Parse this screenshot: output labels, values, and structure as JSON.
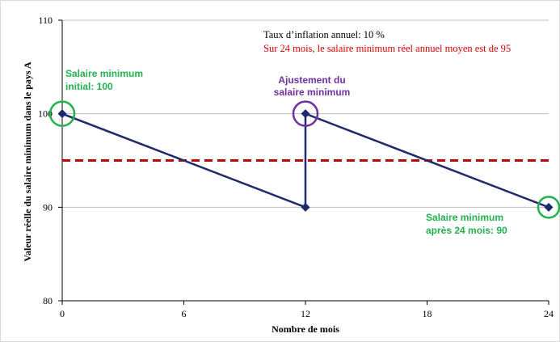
{
  "chart_data": {
    "type": "line",
    "x": [
      0,
      12,
      12,
      24
    ],
    "y": [
      100,
      90,
      100,
      90
    ],
    "reference_line": {
      "y": 95,
      "style": "dashed",
      "color": "#c00000"
    },
    "xlim": [
      0,
      24
    ],
    "ylim": [
      80,
      110
    ],
    "xticks": [
      "0",
      "6",
      "12",
      "18",
      "24"
    ],
    "yticks": [
      "80",
      "90",
      "100",
      "110"
    ],
    "xlabel": "Nombre de mois",
    "ylabel": "Valeur réelle du salaire minimum dans le pays A",
    "grid": "horizontal",
    "series_color": "#1f2a6b",
    "annotations": {
      "inflation": "Taux d’inflation annuel: 10 %",
      "average": "Sur 24 mois, le salaire minimum réel annuel moyen est de 95",
      "initial_line1": "Salaire minimum",
      "initial_line2": "initial:  100",
      "adjust_line1": "Ajustement du",
      "adjust_line2": "salaire minimum",
      "final_line1": "Salaire minimum",
      "final_line2": "après 24 mois: 90"
    },
    "colors": {
      "green": "#22b14c",
      "purple": "#7030a0",
      "red": "#e00000",
      "dashed": "#c00000"
    }
  }
}
